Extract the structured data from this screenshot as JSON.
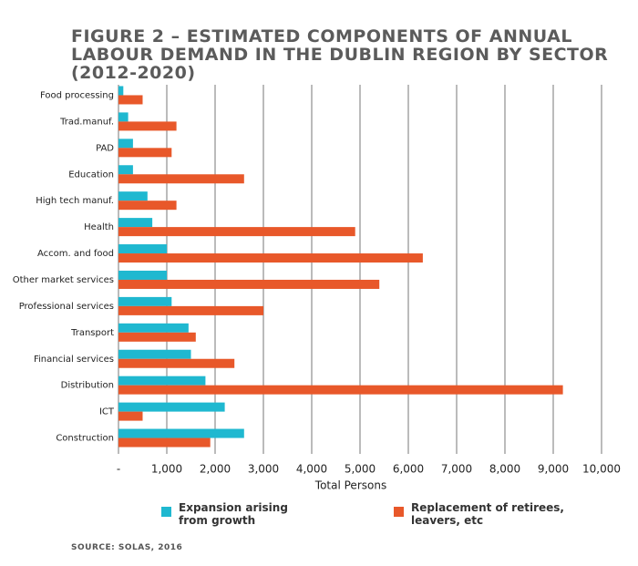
{
  "chart_data": {
    "type": "bar",
    "orientation": "horizontal",
    "title": "FIGURE 2 – ESTIMATED COMPONENTS OF ANNUAL LABOUR DEMAND IN THE DUBLIN REGION BY SECTOR (2012-2020)",
    "categories": [
      "Food processing",
      "Trad.manuf.",
      "PAD",
      "Education",
      "High tech manuf.",
      "Health",
      "Accom. and food",
      "Other market services",
      "Professional services",
      "Transport",
      "Financial services",
      "Distribution",
      "ICT",
      "Construction"
    ],
    "series": [
      {
        "name": "Expansion arising from growth",
        "color": "#1fb8d0",
        "values": [
          100,
          200,
          300,
          300,
          600,
          700,
          1000,
          1000,
          1100,
          1450,
          1500,
          1800,
          2200,
          2600
        ]
      },
      {
        "name": "Replacement of retirees, leavers, etc",
        "color": "#e8582a",
        "values": [
          500,
          1200,
          1100,
          2600,
          1200,
          4900,
          6300,
          5400,
          3000,
          1600,
          2400,
          9200,
          500,
          1900
        ]
      }
    ],
    "xlabel": "Total Persons",
    "xlim": [
      0,
      10000
    ],
    "xticks": [
      {
        "value": 0,
        "label": "-"
      },
      {
        "value": 1000,
        "label": "1,000"
      },
      {
        "value": 2000,
        "label": "2,000"
      },
      {
        "value": 3000,
        "label": "3,000"
      },
      {
        "value": 4000,
        "label": "4,000"
      },
      {
        "value": 5000,
        "label": "5,000"
      },
      {
        "value": 6000,
        "label": "6,000"
      },
      {
        "value": 7000,
        "label": "7,000"
      },
      {
        "value": 8000,
        "label": "8,000"
      },
      {
        "value": 9000,
        "label": "9,000"
      },
      {
        "value": 10000,
        "label": "10,000"
      }
    ],
    "grid": true,
    "source": "SOURCE: SOLAS, 2016"
  }
}
